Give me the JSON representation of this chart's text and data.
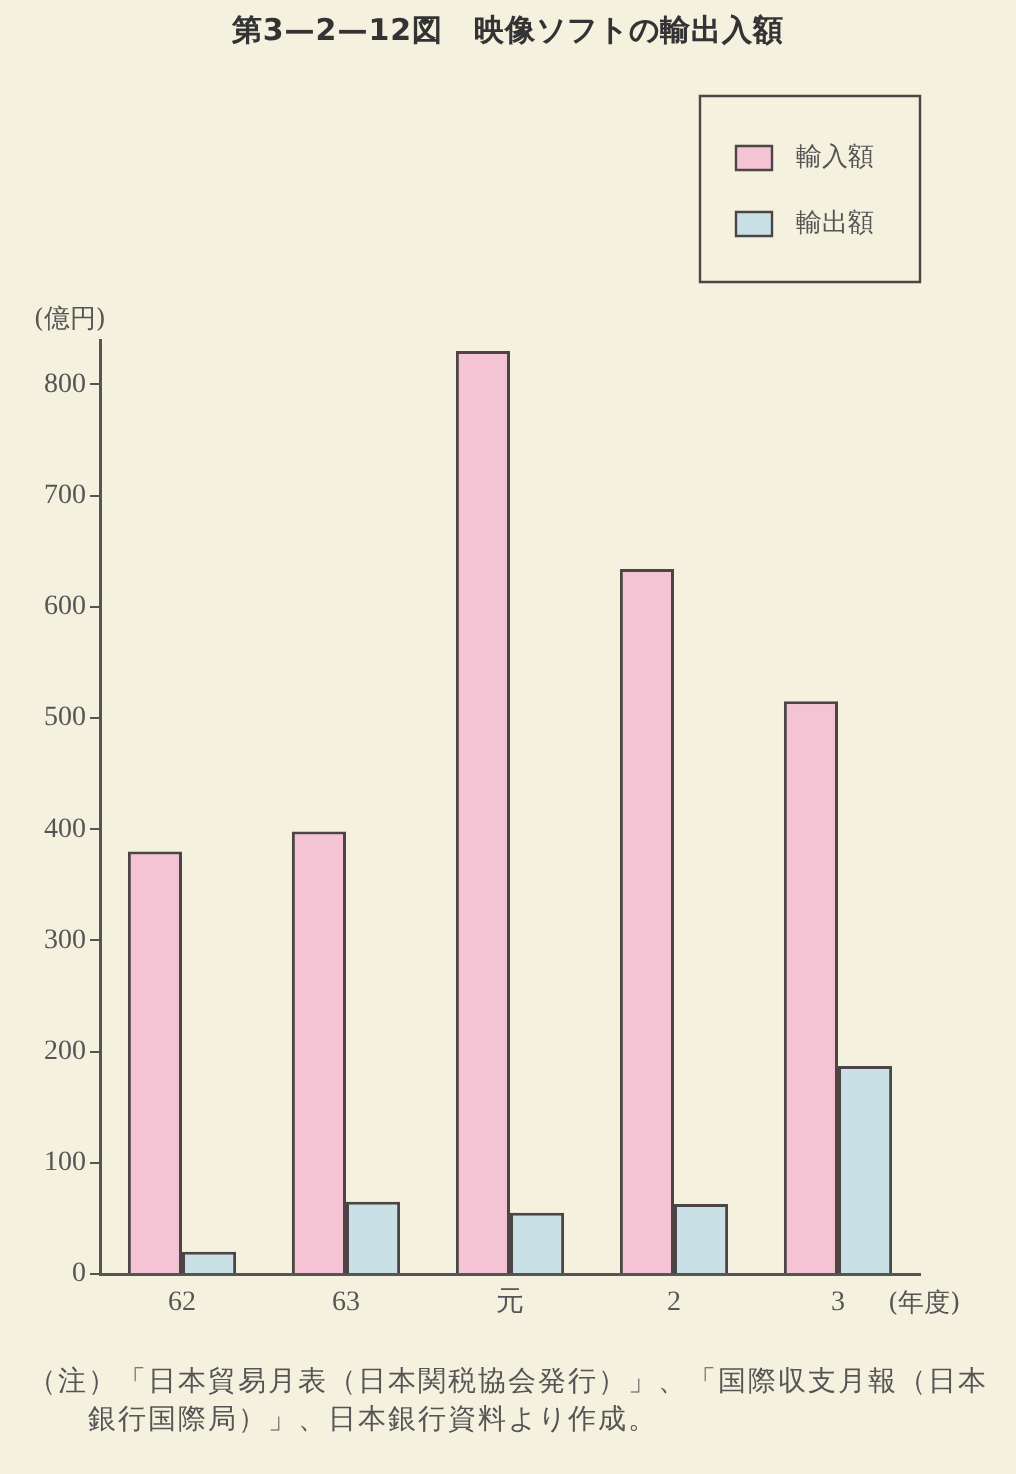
{
  "chart_data": {
    "type": "bar",
    "title": "第3—2—12図　映像ソフトの輸出入額",
    "ylabel": "(億円)",
    "xlabel": "(年度)",
    "categories": [
      "62",
      "63",
      "元",
      "2",
      "3"
    ],
    "series": [
      {
        "name": "輸入額",
        "color": "#f5c4d4",
        "values": [
          380,
          398,
          830,
          634,
          515
        ]
      },
      {
        "name": "輸出額",
        "color": "#c9e1e6",
        "values": [
          20,
          65,
          55,
          63,
          187
        ]
      }
    ],
    "ylim": [
      0,
      840
    ],
    "yticks": [
      0,
      100,
      200,
      300,
      400,
      500,
      600,
      700,
      800
    ],
    "grid": false,
    "legend": "top right",
    "annotations": [
      "（注）「日本貿易月表（日本関税協会発行）」、「国際収支月報（日本銀行国際局）」、日本銀行資料より作成。"
    ]
  }
}
